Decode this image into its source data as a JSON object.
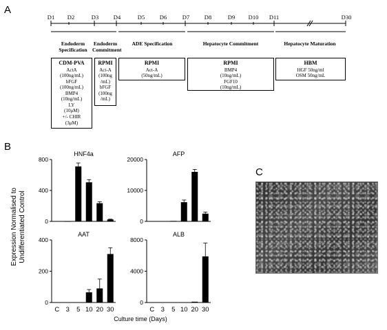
{
  "panels": {
    "a": "A",
    "b": "B",
    "c": "C"
  },
  "timeline": {
    "days": [
      "D1",
      "D2",
      "D3",
      "D4",
      "D5",
      "D6",
      "D7",
      "D8",
      "D9",
      "D10",
      "D11",
      "D30"
    ],
    "stages": [
      {
        "name": "Endoderm Specification"
      },
      {
        "name": "Endoderm Commitment"
      },
      {
        "name": "ADE Specification"
      },
      {
        "name": "Hepatocyte Commitment"
      },
      {
        "name": "Hepatocyte Maturation"
      }
    ],
    "media": [
      {
        "title": "CDM-PVA",
        "lines": [
          "ActA",
          "(100ng/mL)",
          "bFGF",
          "(100ng/mL)",
          "BMP4",
          "(10ng/mL)",
          "LY",
          "(10μM)",
          "+/- CHIR",
          "(3μM)"
        ]
      },
      {
        "title": "RPMI",
        "lines": [
          "Act-A",
          "(100ng",
          "/mL)",
          "bFGF",
          "(100ng",
          "/mL)"
        ]
      },
      {
        "title": "RPMI",
        "lines": [
          "Act-A",
          "(50ng/mL)"
        ]
      },
      {
        "title": "RPMI",
        "lines": [
          "BMP4",
          "(10ng/mL)",
          "FGF10",
          "(10ng/mL)"
        ]
      },
      {
        "title": "HBM",
        "lines": [
          "HGF 50ng/ml",
          "OSM 50ng/mL"
        ]
      }
    ]
  },
  "figure_b": {
    "ylabel_line1": "Expression Normalised to",
    "ylabel_line2": "Undifferentiated Control",
    "xlabel": "Culture time (Days)",
    "bar_color": "#000000"
  },
  "chart_data": [
    {
      "type": "bar",
      "title": "HNF4a",
      "categories": [
        "C",
        "3",
        "5",
        "10",
        "20",
        "30"
      ],
      "values": [
        2,
        0,
        710,
        505,
        235,
        25
      ],
      "errors": [
        0,
        0,
        45,
        35,
        20,
        4
      ],
      "ylim": [
        0,
        800
      ],
      "yticks": [
        0,
        400,
        800
      ]
    },
    {
      "type": "bar",
      "title": "AFP",
      "categories": [
        "C",
        "3",
        "5",
        "10",
        "20",
        "30"
      ],
      "values": [
        100,
        100,
        150,
        6200,
        16000,
        2500
      ],
      "errors": [
        0,
        0,
        0,
        700,
        800,
        500
      ],
      "ylim": [
        0,
        20000
      ],
      "yticks": [
        0,
        10000,
        20000
      ]
    },
    {
      "type": "bar",
      "title": "AAT",
      "categories": [
        "C",
        "3",
        "5",
        "10",
        "20",
        "30"
      ],
      "values": [
        2,
        1,
        2,
        65,
        90,
        310
      ],
      "errors": [
        0,
        0,
        0,
        18,
        60,
        40
      ],
      "ylim": [
        0,
        400
      ],
      "yticks": [
        0,
        200,
        400
      ]
    },
    {
      "type": "bar",
      "title": "ALB",
      "categories": [
        "C",
        "3",
        "5",
        "10",
        "20",
        "30"
      ],
      "values": [
        10,
        10,
        10,
        10,
        100,
        5900
      ],
      "errors": [
        0,
        0,
        0,
        0,
        0,
        1700
      ],
      "ylim": [
        0,
        8000
      ],
      "yticks": [
        0,
        4000,
        8000
      ]
    }
  ]
}
